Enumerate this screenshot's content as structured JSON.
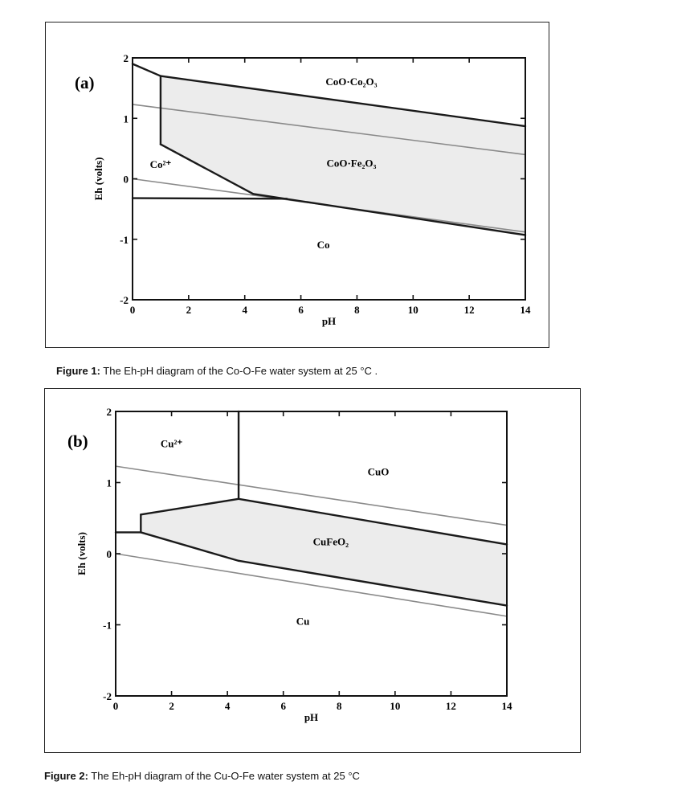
{
  "figures": [
    {
      "caption_prefix": "Figure 1:",
      "caption_text": " The Eh-pH diagram of the Co-O-Fe water system at 25 °C ."
    },
    {
      "caption_prefix": "Figure 2:",
      "caption_text": " The Eh-pH diagram of the Cu-O-Fe water system at 25 °C"
    }
  ],
  "chart_data": [
    {
      "type": "line",
      "panel_label": "(a)",
      "xlabel": "pH",
      "ylabel": "Eh (volts)",
      "xlim": [
        0,
        14
      ],
      "ylim": [
        -2,
        2
      ],
      "xticks": [
        0,
        2,
        4,
        6,
        8,
        10,
        12,
        14
      ],
      "yticks": [
        -2,
        -1,
        0,
        1,
        2
      ],
      "colors": {
        "boundary": "#1a1a1a",
        "water": "#8a8a8a",
        "stability_fill": "#ececec"
      },
      "boundaries": [
        [
          [
            0,
            1.9
          ],
          [
            1,
            1.7
          ]
        ],
        [
          [
            1,
            1.7
          ],
          [
            14,
            0.87
          ]
        ],
        [
          [
            1,
            1.7
          ],
          [
            1,
            0.57
          ]
        ],
        [
          [
            1,
            0.57
          ],
          [
            4.3,
            -0.25
          ]
        ],
        [
          [
            4.3,
            -0.25
          ],
          [
            14,
            -0.93
          ]
        ],
        [
          [
            0,
            -0.32
          ],
          [
            5.5,
            -0.33
          ]
        ]
      ],
      "stability_region": [
        [
          1,
          1.7
        ],
        [
          14,
          0.87
        ],
        [
          14,
          -0.93
        ],
        [
          4.3,
          -0.25
        ],
        [
          1,
          0.57
        ]
      ],
      "water_lines": [
        [
          [
            0,
            1.23
          ],
          [
            14,
            0.4
          ]
        ],
        [
          [
            0,
            0.0
          ],
          [
            14,
            -0.88
          ]
        ]
      ],
      "regions": [
        {
          "label": "CoO·Co₂O₃",
          "x": 7.8,
          "y": 1.55
        },
        {
          "label": "CoO·Fe₂O₃",
          "x": 7.8,
          "y": 0.2
        },
        {
          "label": "Co²⁺",
          "x": 1.0,
          "y": 0.18
        },
        {
          "label": "Co",
          "x": 6.8,
          "y": -1.15
        }
      ]
    },
    {
      "type": "line",
      "panel_label": "(b)",
      "xlabel": "pH",
      "ylabel": "Eh (volts)",
      "xlim": [
        0,
        14
      ],
      "ylim": [
        -2,
        2
      ],
      "xticks": [
        0,
        2,
        4,
        6,
        8,
        10,
        12,
        14
      ],
      "yticks": [
        -2,
        -1,
        0,
        1,
        2
      ],
      "colors": {
        "boundary": "#1a1a1a",
        "water": "#8a8a8a",
        "stability_fill": "#ececec"
      },
      "boundaries": [
        [
          [
            4.4,
            2.0
          ],
          [
            4.4,
            0.77
          ]
        ],
        [
          [
            0.9,
            0.55
          ],
          [
            4.4,
            0.77
          ]
        ],
        [
          [
            4.4,
            0.77
          ],
          [
            14,
            0.13
          ]
        ],
        [
          [
            0.9,
            0.55
          ],
          [
            0.9,
            0.3
          ]
        ],
        [
          [
            0,
            0.3
          ],
          [
            0.9,
            0.3
          ]
        ],
        [
          [
            0.9,
            0.3
          ],
          [
            4.4,
            -0.1
          ]
        ],
        [
          [
            4.4,
            -0.1
          ],
          [
            14,
            -0.73
          ]
        ]
      ],
      "stability_region": [
        [
          0.9,
          0.55
        ],
        [
          4.4,
          0.77
        ],
        [
          14,
          0.13
        ],
        [
          14,
          -0.73
        ],
        [
          4.4,
          -0.1
        ],
        [
          0.9,
          0.3
        ]
      ],
      "water_lines": [
        [
          [
            0,
            1.23
          ],
          [
            14,
            0.4
          ]
        ],
        [
          [
            0,
            0.0
          ],
          [
            14,
            -0.88
          ]
        ]
      ],
      "regions": [
        {
          "label": "Cu²⁺",
          "x": 2.0,
          "y": 1.5
        },
        {
          "label": "CuO",
          "x": 9.4,
          "y": 1.1
        },
        {
          "label": "CuFeO₂",
          "x": 7.7,
          "y": 0.12
        },
        {
          "label": "Cu",
          "x": 6.7,
          "y": -1.0
        }
      ]
    }
  ]
}
